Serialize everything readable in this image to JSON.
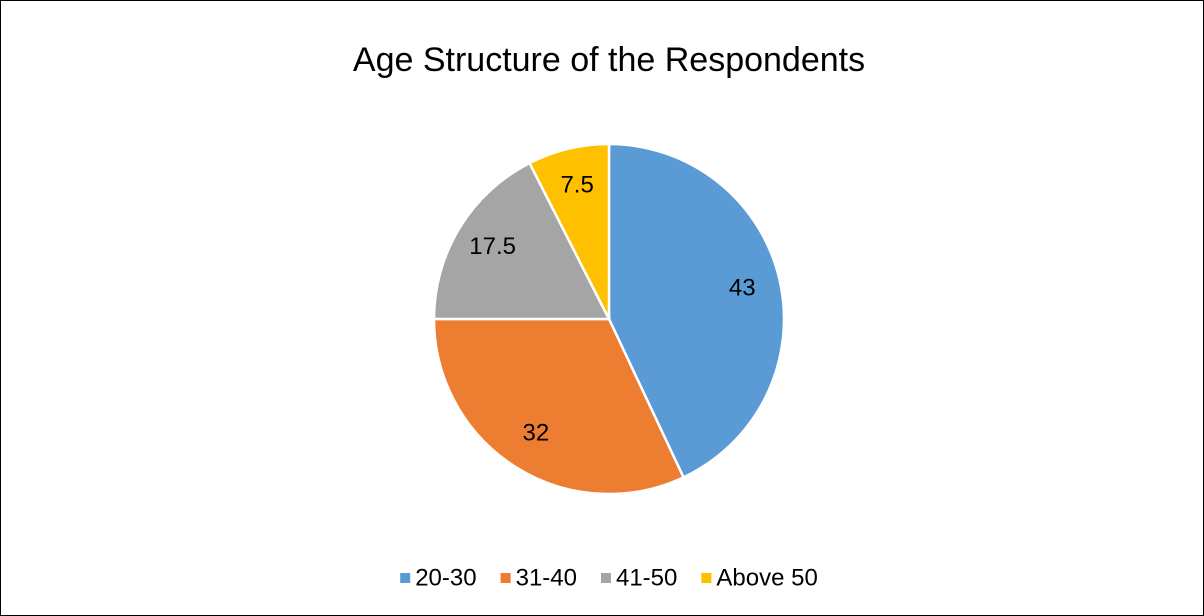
{
  "chart_data": {
    "type": "pie",
    "title": "Age Structure of the Respondents",
    "categories": [
      "20-30",
      "31-40",
      "41-50",
      "Above 50"
    ],
    "values": [
      43,
      32,
      17.5,
      7.5
    ],
    "colors": [
      "#5b9bd5",
      "#ed7d31",
      "#a5a5a5",
      "#ffc000"
    ],
    "legend": "bottom"
  }
}
